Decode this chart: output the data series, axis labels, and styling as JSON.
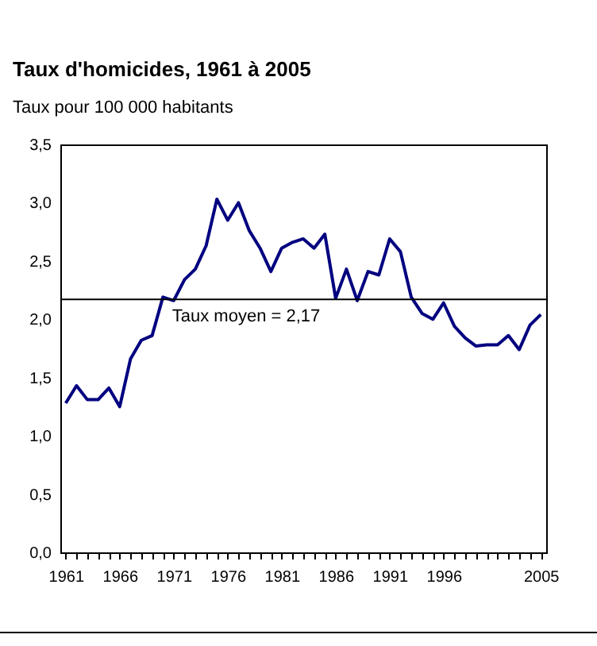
{
  "chart_data": {
    "type": "line",
    "title": "Taux d'homicides, 1961 à  2005",
    "subtitle": "Taux pour 100 000 habitants",
    "x": [
      1961,
      1962,
      1963,
      1964,
      1965,
      1966,
      1967,
      1968,
      1969,
      1970,
      1971,
      1972,
      1973,
      1974,
      1975,
      1976,
      1977,
      1978,
      1979,
      1980,
      1981,
      1982,
      1983,
      1984,
      1985,
      1986,
      1987,
      1988,
      1989,
      1990,
      1991,
      1992,
      1993,
      1994,
      1995,
      1996,
      1997,
      1998,
      1999,
      2000,
      2001,
      2002,
      2003,
      2004,
      2005
    ],
    "series": [
      {
        "color": "#000080",
        "values": [
          1.28,
          1.43,
          1.31,
          1.31,
          1.41,
          1.25,
          1.66,
          1.82,
          1.86,
          2.19,
          2.16,
          2.34,
          2.43,
          2.63,
          3.03,
          2.85,
          3.0,
          2.76,
          2.61,
          2.41,
          2.61,
          2.66,
          2.69,
          2.61,
          2.73,
          2.18,
          2.43,
          2.16,
          2.41,
          2.38,
          2.69,
          2.58,
          2.19,
          2.05,
          2.0,
          2.14,
          1.94,
          1.84,
          1.77,
          1.78,
          1.78,
          1.86,
          1.74,
          1.95,
          2.04
        ]
      }
    ],
    "xlim": [
      1960.5,
      2005.5
    ],
    "xticks": [
      1961,
      {
        "value": 1962,
        "label": null
      },
      {
        "value": 1963,
        "label": null
      },
      {
        "value": 1964,
        "label": null
      },
      {
        "value": 1965,
        "label": null
      },
      1966,
      {
        "value": 1967,
        "label": null
      },
      {
        "value": 1968,
        "label": null
      },
      {
        "value": 1969,
        "label": null
      },
      {
        "value": 1970,
        "label": null
      },
      1971,
      {
        "value": 1972,
        "label": null
      },
      {
        "value": 1973,
        "label": null
      },
      {
        "value": 1974,
        "label": null
      },
      {
        "value": 1975,
        "label": null
      },
      1976,
      {
        "value": 1977,
        "label": null
      },
      {
        "value": 1978,
        "label": null
      },
      {
        "value": 1979,
        "label": null
      },
      {
        "value": 1980,
        "label": null
      },
      1981,
      {
        "value": 1982,
        "label": null
      },
      {
        "value": 1983,
        "label": null
      },
      {
        "value": 1984,
        "label": null
      },
      {
        "value": 1985,
        "label": null
      },
      1986,
      {
        "value": 1987,
        "label": null
      },
      {
        "value": 1988,
        "label": null
      },
      {
        "value": 1989,
        "label": null
      },
      {
        "value": 1990,
        "label": null
      },
      1991,
      {
        "value": 1992,
        "label": null
      },
      {
        "value": 1993,
        "label": null
      },
      {
        "value": 1994,
        "label": null
      },
      {
        "value": 1995,
        "label": null
      },
      1996,
      {
        "value": 1997,
        "label": null
      },
      {
        "value": 1998,
        "label": null
      },
      {
        "value": 1999,
        "label": null
      },
      {
        "value": 2000,
        "label": null
      },
      {
        "value": 2001,
        "label": null
      },
      {
        "value": 2002,
        "label": null
      },
      {
        "value": 2003,
        "label": null
      },
      {
        "value": 2004,
        "label": null
      },
      2005
    ],
    "ylim": [
      0,
      3.5
    ],
    "yticks": [
      {
        "value": 0,
        "label": "0,0"
      },
      {
        "value": 0.5,
        "label": "0,5"
      },
      {
        "value": 1,
        "label": "1,0"
      },
      {
        "value": 1.5,
        "label": "1,5"
      },
      {
        "value": 2,
        "label": "2,0"
      },
      {
        "value": 2.5,
        "label": "2,5"
      },
      {
        "value": 3,
        "label": "3,0"
      },
      {
        "value": 3.5,
        "label": "3,5"
      }
    ],
    "ref_lines": [
      {
        "axis": "y",
        "value": 2.17,
        "label": "Taux moyen = 2,17",
        "color": "#000000"
      }
    ],
    "grid": false,
    "marker": "none",
    "line_style": "solid"
  }
}
